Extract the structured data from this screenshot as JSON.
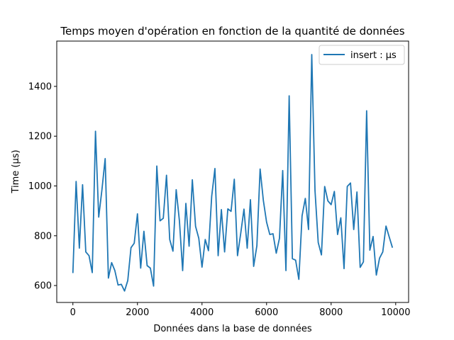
{
  "chart_data": {
    "type": "line",
    "title": "Temps moyen d'opération en fonction de la quantité de données",
    "xlabel": "Données dans la base de données",
    "ylabel": "Time (µs)",
    "xlim": [
      -500,
      10400
    ],
    "ylim": [
      532,
      1582
    ],
    "xticks": [
      0,
      2000,
      4000,
      6000,
      8000,
      10000
    ],
    "yticks": [
      600,
      800,
      1000,
      1200,
      1400
    ],
    "grid": false,
    "legend_position": "top-right",
    "series": [
      {
        "name": "insert : µs",
        "color": "#1f77b4",
        "x": [
          0,
          100,
          200,
          300,
          400,
          500,
          600,
          700,
          800,
          900,
          1000,
          1100,
          1200,
          1300,
          1400,
          1500,
          1600,
          1700,
          1800,
          1900,
          2000,
          2100,
          2200,
          2300,
          2400,
          2500,
          2600,
          2700,
          2800,
          2900,
          3000,
          3100,
          3200,
          3300,
          3400,
          3500,
          3600,
          3700,
          3800,
          3900,
          4000,
          4100,
          4200,
          4300,
          4400,
          4500,
          4600,
          4700,
          4800,
          4900,
          5000,
          5100,
          5200,
          5300,
          5400,
          5500,
          5600,
          5700,
          5800,
          5900,
          6000,
          6100,
          6200,
          6300,
          6400,
          6500,
          6600,
          6700,
          6800,
          6900,
          7000,
          7100,
          7200,
          7300,
          7400,
          7500,
          7600,
          7700,
          7800,
          7900,
          8000,
          8100,
          8200,
          8300,
          8400,
          8500,
          8600,
          8700,
          8800,
          8900,
          9000,
          9100,
          9200,
          9300,
          9400,
          9500,
          9600,
          9700,
          9800,
          9900
        ],
        "y": [
          650,
          1018,
          750,
          1005,
          735,
          720,
          652,
          1220,
          875,
          985,
          1110,
          630,
          692,
          660,
          602,
          605,
          578,
          620,
          752,
          770,
          888,
          670,
          818,
          680,
          670,
          598,
          1080,
          860,
          870,
          1043,
          785,
          738,
          985,
          860,
          660,
          930,
          758,
          1025,
          838,
          790,
          674,
          785,
          740,
          958,
          1070,
          720,
          905,
          735,
          908,
          898,
          1027,
          720,
          810,
          907,
          750,
          945,
          677,
          760,
          1068,
          942,
          855,
          805,
          808,
          730,
          790,
          1062,
          660,
          1362,
          708,
          702,
          625,
          880,
          950,
          825,
          1528,
          982,
          773,
          723,
          998,
          940,
          925,
          978,
          805,
          872,
          668,
          998,
          1012,
          825,
          976,
          673,
          695,
          1302,
          742,
          797,
          642,
          710,
          735,
          839,
          795,
          752
        ]
      }
    ]
  }
}
